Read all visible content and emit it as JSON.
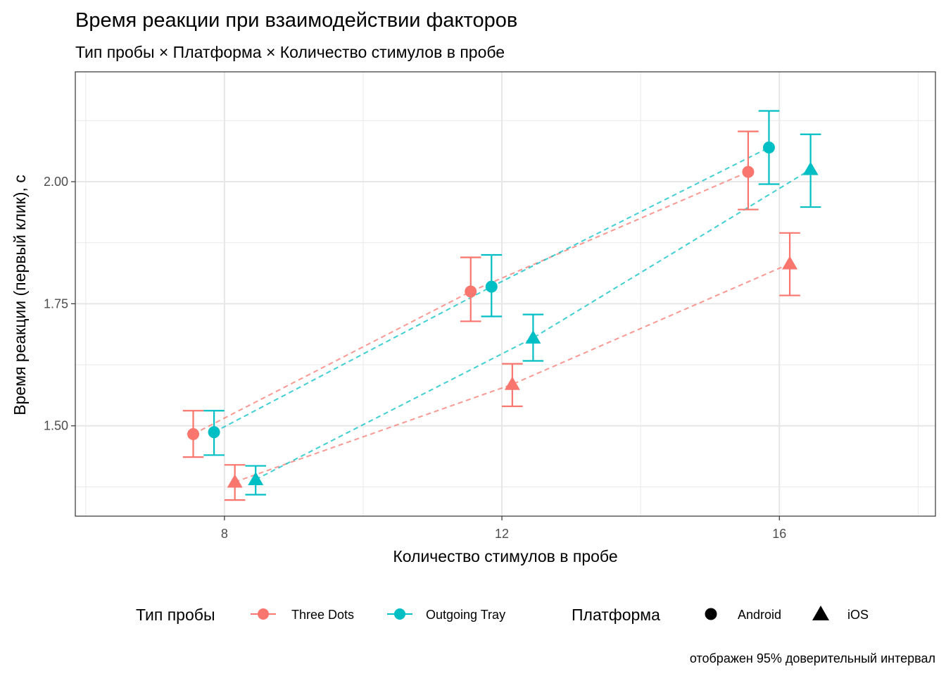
{
  "chart_data": {
    "type": "scatter",
    "title": "Время реакции при взаимодействии факторов",
    "subtitle": "Тип пробы × Платформа × Количество стимулов в пробе",
    "xlabel": "Количество стимулов в пробе",
    "ylabel": "Время реакции (первый клик), с",
    "caption": "отображен 95% доверительный интервал",
    "xlim": [
      5.85,
      18.25
    ],
    "ylim": [
      1.315,
      2.225
    ],
    "x_ticks": [
      8,
      12,
      16
    ],
    "x_tick_labels": [
      "8",
      "12",
      "16"
    ],
    "y_ticks": [
      1.5,
      1.75,
      2.0
    ],
    "y_tick_labels": [
      "1.50",
      "1.75",
      "2.00"
    ],
    "grid": true,
    "legend_position": "bottom",
    "colors": {
      "Three Dots": "#f8766d",
      "Outgoing Tray": "#00bfc4"
    },
    "legend": {
      "color_title": "Тип пробы",
      "color_items": [
        "Three Dots",
        "Outgoing Tray"
      ],
      "shape_title": "Платформа",
      "shape_items": [
        "Android",
        "iOS"
      ]
    },
    "series": [
      {
        "name": "Three Dots",
        "shape_level": "Android",
        "points": [
          {
            "x": 8,
            "y": 1.483,
            "ymin": 1.436,
            "ymax": 1.531
          },
          {
            "x": 12,
            "y": 1.775,
            "ymin": 1.714,
            "ymax": 1.845
          },
          {
            "x": 16,
            "y": 2.02,
            "ymin": 1.943,
            "ymax": 2.103
          }
        ]
      },
      {
        "name": "Outgoing Tray",
        "shape_level": "Android",
        "points": [
          {
            "x": 8,
            "y": 1.487,
            "ymin": 1.44,
            "ymax": 1.531
          },
          {
            "x": 12,
            "y": 1.785,
            "ymin": 1.724,
            "ymax": 1.85
          },
          {
            "x": 16,
            "y": 2.07,
            "ymin": 1.995,
            "ymax": 2.145
          }
        ]
      },
      {
        "name": "Three Dots",
        "shape_level": "iOS",
        "points": [
          {
            "x": 8,
            "y": 1.385,
            "ymin": 1.348,
            "ymax": 1.42
          },
          {
            "x": 12,
            "y": 1.585,
            "ymin": 1.54,
            "ymax": 1.627
          },
          {
            "x": 16,
            "y": 1.832,
            "ymin": 1.767,
            "ymax": 1.895
          }
        ]
      },
      {
        "name": "Outgoing Tray",
        "shape_level": "iOS",
        "points": [
          {
            "x": 8,
            "y": 1.39,
            "ymin": 1.359,
            "ymax": 1.418
          },
          {
            "x": 12,
            "y": 1.68,
            "ymin": 1.633,
            "ymax": 1.728
          },
          {
            "x": 16,
            "y": 2.025,
            "ymin": 1.948,
            "ymax": 2.097
          }
        ]
      }
    ]
  }
}
